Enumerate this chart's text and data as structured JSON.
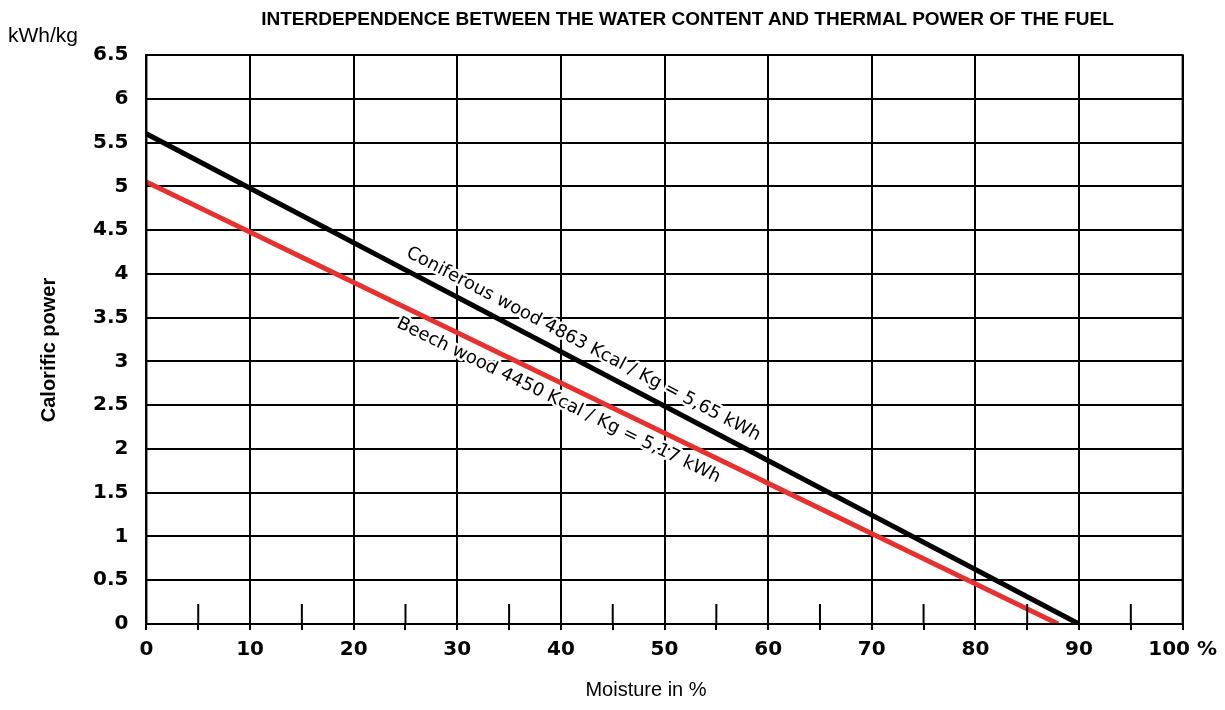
{
  "chart_data": {
    "type": "line",
    "title": "INTERDEPENDENCE BETWEEN THE WATER CONTENT AND THERMAL POWER OF THE FUEL",
    "xlabel": "Moisture in %",
    "ylabel": "Calorific power",
    "series": [
      {
        "color": "#000000",
        "x": [
          0,
          90
        ],
        "values": [
          5.6,
          0
        ]
      },
      {
        "color": "#e8312f",
        "x": [
          0,
          88
        ],
        "values": [
          5.05,
          0
        ]
      }
    ],
    "annotations": [
      "kWh/kg",
      "Coniferous wood 4863 Kcal / Kg = 5,65 kWh",
      "Beech wood 4450 Kcal / Kg = 5,17 kWh"
    ],
    "xlim": [
      0,
      100
    ],
    "xticks": [
      0,
      {
        "value": 5,
        "label": null
      },
      10,
      {
        "value": 15,
        "label": null
      },
      20,
      {
        "value": 25,
        "label": null
      },
      30,
      {
        "value": 35,
        "label": null
      },
      40,
      {
        "value": 45,
        "label": null
      },
      50,
      {
        "value": 55,
        "label": null
      },
      60,
      {
        "value": 65,
        "label": null
      },
      70,
      {
        "value": 75,
        "label": null
      },
      80,
      {
        "value": 85,
        "label": null
      },
      90,
      {
        "value": 95,
        "label": null
      },
      {
        "value": 100,
        "label": "100 %"
      }
    ],
    "ylim": [
      0,
      6.5
    ],
    "yticks": [
      0,
      0.5,
      1,
      1.5,
      2,
      2.5,
      3,
      3.5,
      4,
      4.5,
      5,
      5.5,
      6,
      6.5
    ],
    "grid": true,
    "legend": false,
    "marker": "none",
    "line_style": "solid"
  }
}
